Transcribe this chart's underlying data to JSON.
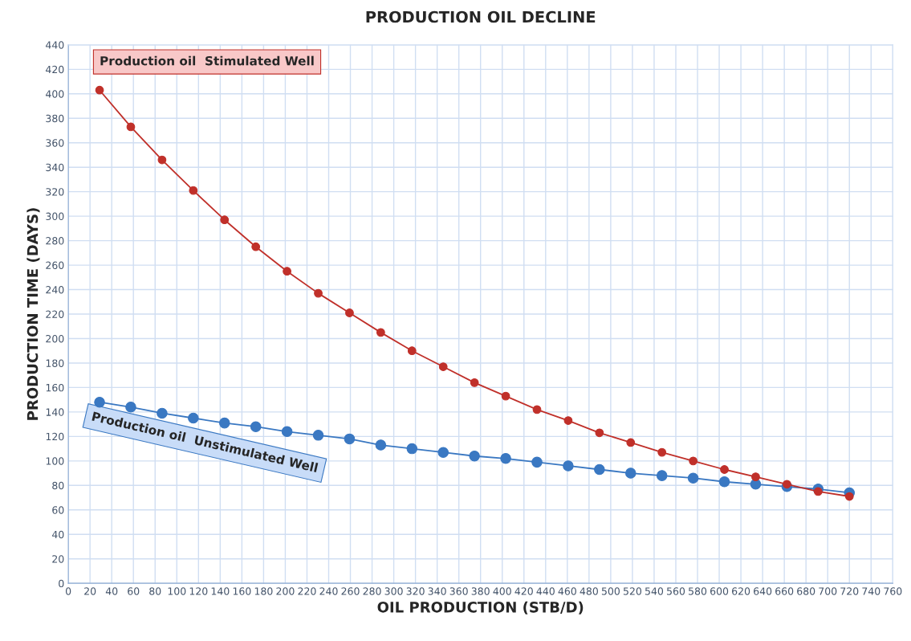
{
  "chart_data": {
    "type": "line",
    "title": "PRODUCTION OIL DECLINE",
    "xlabel": "OIL PRODUCTION (STB/D)",
    "ylabel": "PRODUCTION TIME (DAYS)",
    "x": [
      28.8,
      57.6,
      86.4,
      115.2,
      144,
      172.8,
      201.6,
      230.4,
      259.2,
      288,
      316.8,
      345.6,
      374.4,
      403.2,
      432,
      460.8,
      489.6,
      518.4,
      547.2,
      576,
      604.8,
      633.6,
      662.4,
      691.2,
      720
    ],
    "series": [
      {
        "name": "Production oil  Stimulated Well",
        "color": "#c0302a",
        "values": [
          403,
          373,
          346,
          321,
          297,
          275,
          255,
          237,
          221,
          205,
          190,
          177,
          164,
          153,
          142,
          133,
          123,
          115,
          107,
          100,
          93,
          87,
          81,
          75,
          71
        ]
      },
      {
        "name": "Production oil  Unstimulated Well",
        "color": "#3a78c2",
        "values": [
          148,
          144,
          139,
          135,
          131,
          128,
          124,
          121,
          118,
          113,
          110,
          107,
          104,
          102,
          99,
          96,
          93,
          90,
          88,
          86,
          83,
          81,
          79,
          77,
          74
        ]
      }
    ],
    "xlim": [
      0,
      760
    ],
    "xticks": [
      0,
      20,
      40,
      60,
      80,
      100,
      120,
      140,
      160,
      180,
      200,
      220,
      240,
      260,
      280,
      300,
      320,
      340,
      360,
      380,
      400,
      420,
      440,
      460,
      480,
      500,
      520,
      540,
      560,
      580,
      600,
      620,
      640,
      660,
      680,
      700,
      720,
      740,
      760
    ],
    "ylim": [
      0,
      440
    ],
    "yticks": [
      0,
      20,
      40,
      60,
      80,
      100,
      120,
      140,
      160,
      180,
      200,
      220,
      240,
      260,
      280,
      300,
      320,
      340,
      360,
      380,
      400,
      420,
      440
    ],
    "grid": true,
    "marker": "circle",
    "line_style": "solid",
    "legend": false
  }
}
